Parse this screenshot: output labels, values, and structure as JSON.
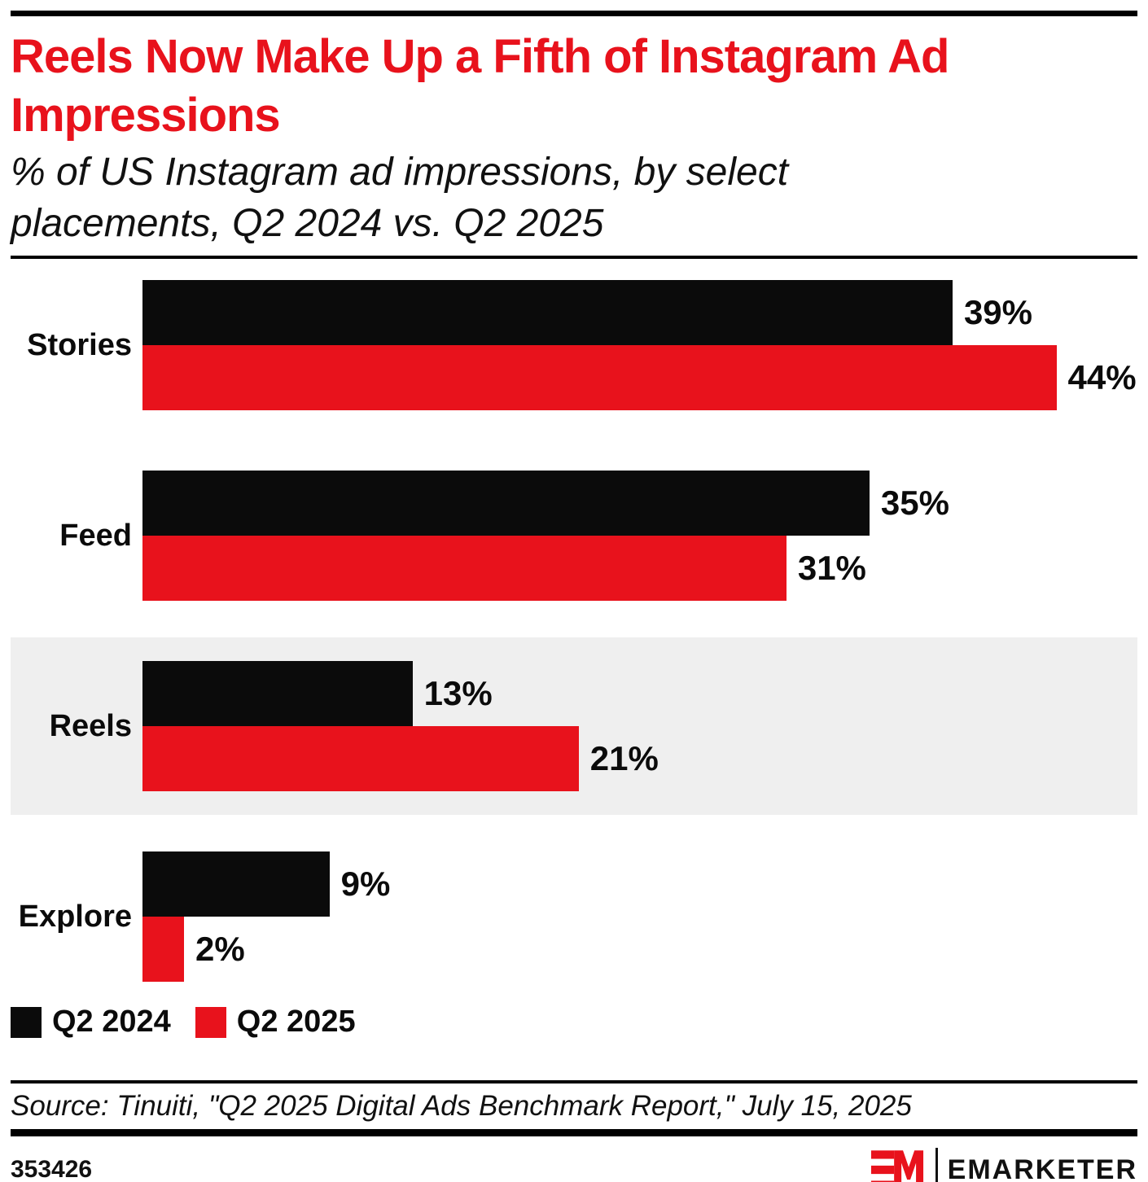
{
  "header": {
    "title": "Reels Now Make Up a Fifth of Instagram Ad Impressions",
    "title_lines": [
      "Reels Now Make Up a Fifth of Instagram Ad",
      "Impressions"
    ],
    "subtitle_lines": [
      "% of US Instagram ad impressions, by select",
      "placements, Q2 2024 vs. Q2 2025"
    ]
  },
  "chart_data": {
    "type": "bar",
    "orientation": "horizontal",
    "title": "Reels Now Make Up a Fifth of Instagram Ad Impressions",
    "subtitle": "% of US Instagram ad impressions, by select placements, Q2 2024 vs. Q2 2025",
    "categories": [
      "Stories",
      "Feed",
      "Reels",
      "Explore"
    ],
    "series": [
      {
        "name": "Q2 2024",
        "color": "#0b0b0b",
        "values": [
          39,
          35,
          13,
          9
        ]
      },
      {
        "name": "Q2 2025",
        "color": "#e8121c",
        "values": [
          44,
          31,
          21,
          2
        ]
      }
    ],
    "value_suffix": "%",
    "xlim": [
      0,
      47.9
    ],
    "grid": false,
    "legend_position": "bottom-left",
    "highlighted_category": "Reels",
    "highlight_color": "#efefef"
  },
  "legend": {
    "items": [
      {
        "label": "Q2 2024",
        "color": "#0b0b0b"
      },
      {
        "label": "Q2 2025",
        "color": "#e8121c"
      }
    ]
  },
  "source": "Source: Tinuiti, \"Q2 2025 Digital Ads Benchmark Report,\" July 15, 2025",
  "footer": {
    "chart_id": "353426",
    "brand_monogram": "EM",
    "brand_name": "EMARKETER"
  },
  "colors": {
    "accent_red": "#e8121c",
    "bar_black": "#0b0b0b",
    "highlight_band": "#efefef",
    "rule_black": "#000000"
  }
}
